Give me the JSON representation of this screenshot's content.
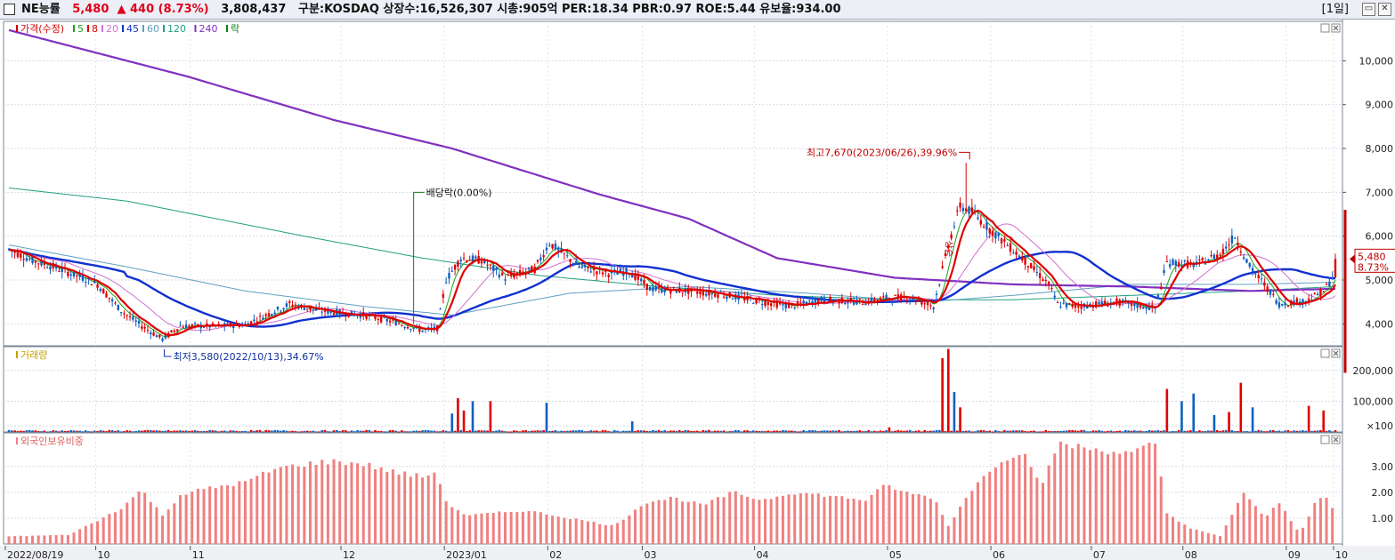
{
  "header": {
    "name": "NE능률",
    "price": "5,480",
    "change": "▲ 440 (8.73%)",
    "volume": "3,808,437",
    "info": "구분:KOSDAQ 상장수:16,526,307 시총:905억 PER:18.34 PBR:0.97 ROE:5.44 유보율:934.00",
    "period": "[1일]"
  },
  "legends": {
    "price": [
      {
        "label": "가격(수정)",
        "color": "#d00000"
      },
      {
        "label": "5",
        "color": "#20a020"
      },
      {
        "label": "8",
        "color": "#e00000"
      },
      {
        "label": "20",
        "color": "#d070d0"
      },
      {
        "label": "45",
        "color": "#1030d0"
      },
      {
        "label": "60",
        "color": "#60a0c0"
      },
      {
        "label": "120",
        "color": "#20a080"
      },
      {
        "label": "240",
        "color": "#8030c0"
      },
      {
        "label": "락",
        "color": "#108010"
      }
    ],
    "volume": "거래량",
    "foreign": "외국인보유비중"
  },
  "annotations": {
    "high": "최고7,670(2023/06/26),39.96%",
    "low": "최저3,580(2022/10/13),34.67%",
    "dividend": "배당락(0.00%)",
    "event": "상승"
  },
  "current_price_tag": {
    "price": "5,480",
    "pct": "8.73%"
  },
  "axes": {
    "price_ticks": [
      "10,000",
      "9,000",
      "8,000",
      "7,000",
      "6,000",
      "5,000",
      "4,000"
    ],
    "volume_ticks": [
      "200,000",
      "100,000",
      "×100"
    ],
    "foreign_ticks": [
      "3.00",
      "2.00",
      "1.00"
    ],
    "x_labels": [
      "2022/08/19",
      "10",
      "11",
      "12",
      "2023/01",
      "02",
      "03",
      "04",
      "05",
      "06",
      "07",
      "08",
      "09",
      "10",
      "11"
    ]
  },
  "chart_data": {
    "type": "line",
    "title": "",
    "x_range": [
      "2022/08/19",
      "2023/10/31"
    ],
    "price": {
      "ylim": [
        3500,
        10900
      ],
      "close_keypoints": [
        [
          0,
          5700
        ],
        [
          8,
          5450
        ],
        [
          15,
          5300
        ],
        [
          25,
          5050
        ],
        [
          30,
          4900
        ],
        [
          38,
          4300
        ],
        [
          45,
          3950
        ],
        [
          52,
          3650
        ],
        [
          58,
          3950
        ],
        [
          70,
          3950
        ],
        [
          80,
          3980
        ],
        [
          95,
          4450
        ],
        [
          105,
          4300
        ],
        [
          120,
          4200
        ],
        [
          130,
          4050
        ],
        [
          140,
          3850
        ],
        [
          145,
          3900
        ],
        [
          148,
          5000
        ],
        [
          153,
          5500
        ],
        [
          160,
          5450
        ],
        [
          168,
          5050
        ],
        [
          178,
          5250
        ],
        [
          183,
          5850
        ],
        [
          193,
          5300
        ],
        [
          203,
          5150
        ],
        [
          210,
          5200
        ],
        [
          217,
          4800
        ],
        [
          230,
          4750
        ],
        [
          243,
          4650
        ],
        [
          255,
          4500
        ],
        [
          265,
          4400
        ],
        [
          275,
          4550
        ],
        [
          290,
          4500
        ],
        [
          298,
          4600
        ],
        [
          305,
          4600
        ],
        [
          313,
          4400
        ],
        [
          318,
          5800
        ],
        [
          322,
          6700
        ],
        [
          326,
          6550
        ],
        [
          333,
          6100
        ],
        [
          343,
          5500
        ],
        [
          352,
          4900
        ],
        [
          355,
          4450
        ],
        [
          362,
          4400
        ],
        [
          375,
          4500
        ],
        [
          388,
          4350
        ],
        [
          392,
          5400
        ],
        [
          402,
          5350
        ],
        [
          410,
          5600
        ],
        [
          415,
          6000
        ],
        [
          420,
          5300
        ],
        [
          425,
          4900
        ],
        [
          430,
          4450
        ],
        [
          440,
          4550
        ],
        [
          445,
          4750
        ],
        [
          448,
          5040
        ],
        [
          449,
          5480
        ]
      ],
      "annotated_high": 7670,
      "annotated_low": 3580,
      "last_close": 5480
    },
    "volume": {
      "ylim": [
        0,
        260000
      ],
      "spikes": [
        [
          150,
          60000
        ],
        [
          152,
          110000
        ],
        [
          154,
          70000
        ],
        [
          157,
          100000
        ],
        [
          163,
          100000
        ],
        [
          182,
          95000
        ],
        [
          211,
          35000
        ],
        [
          298,
          15000
        ],
        [
          316,
          240000
        ],
        [
          318,
          270000
        ],
        [
          320,
          130000
        ],
        [
          322,
          80000
        ],
        [
          392,
          140000
        ],
        [
          397,
          100000
        ],
        [
          401,
          125000
        ],
        [
          408,
          55000
        ],
        [
          413,
          65000
        ],
        [
          417,
          160000
        ],
        [
          421,
          80000
        ],
        [
          440,
          85000
        ],
        [
          445,
          70000
        ],
        [
          450,
          120000
        ],
        [
          452,
          45000
        ]
      ]
    },
    "foreign_ratio": {
      "ylim": [
        0,
        4.3
      ],
      "keypoints": [
        [
          0,
          0.3
        ],
        [
          20,
          0.35
        ],
        [
          30,
          0.9
        ],
        [
          38,
          1.4
        ],
        [
          45,
          2.1
        ],
        [
          52,
          1.1
        ],
        [
          58,
          1.9
        ],
        [
          65,
          2.1
        ],
        [
          80,
          2.4
        ],
        [
          90,
          2.9
        ],
        [
          100,
          3.1
        ],
        [
          110,
          3.2
        ],
        [
          120,
          3.1
        ],
        [
          130,
          2.8
        ],
        [
          140,
          2.6
        ],
        [
          145,
          2.8
        ],
        [
          148,
          1.6
        ],
        [
          155,
          1.1
        ],
        [
          165,
          1.2
        ],
        [
          175,
          1.3
        ],
        [
          185,
          1.1
        ],
        [
          195,
          0.9
        ],
        [
          205,
          0.7
        ],
        [
          215,
          1.6
        ],
        [
          225,
          1.8
        ],
        [
          235,
          1.5
        ],
        [
          245,
          2.0
        ],
        [
          255,
          1.7
        ],
        [
          265,
          2.0
        ],
        [
          275,
          1.9
        ],
        [
          290,
          1.7
        ],
        [
          297,
          2.3
        ],
        [
          303,
          2.0
        ],
        [
          313,
          1.8
        ],
        [
          318,
          0.7
        ],
        [
          325,
          2.0
        ],
        [
          335,
          3.2
        ],
        [
          343,
          3.6
        ],
        [
          350,
          2.3
        ],
        [
          355,
          3.9
        ],
        [
          365,
          3.7
        ],
        [
          380,
          3.5
        ],
        [
          388,
          3.9
        ],
        [
          392,
          1.2
        ],
        [
          400,
          0.6
        ],
        [
          410,
          0.3
        ],
        [
          418,
          2.0
        ],
        [
          425,
          1.0
        ],
        [
          430,
          1.6
        ],
        [
          437,
          0.4
        ],
        [
          443,
          1.8
        ],
        [
          447,
          1.7
        ],
        [
          449,
          1.1
        ]
      ]
    },
    "moving_averages": [
      "5",
      "8",
      "20",
      "45",
      "60",
      "120",
      "240"
    ]
  }
}
